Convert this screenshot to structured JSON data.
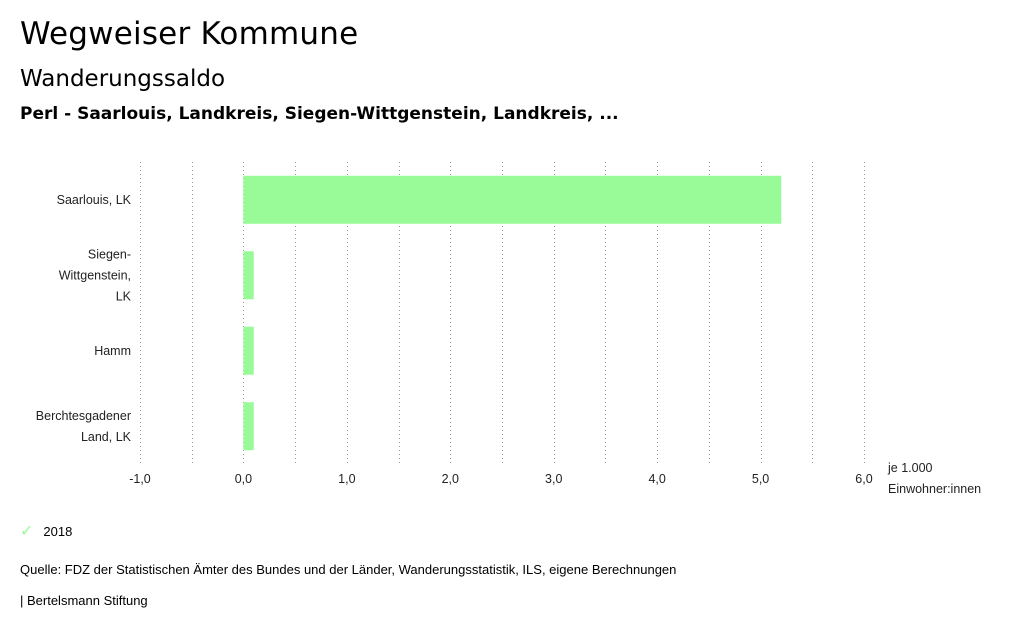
{
  "header": {
    "title": "Wegweiser Kommune",
    "subtitle": "Wanderungssaldo",
    "regions": "Perl - Saarlouis, Landkreis, Siegen-Wittgenstein, Landkreis, ..."
  },
  "chart_data": {
    "type": "bar",
    "orientation": "horizontal",
    "categories": [
      [
        "Saarlouis, LK"
      ],
      [
        "Siegen-",
        "Wittgenstein,",
        "LK"
      ],
      [
        "Hamm"
      ],
      [
        "Berchtesgadener",
        "Land, LK"
      ]
    ],
    "series": [
      {
        "name": "2018",
        "values": [
          5.2,
          0.1,
          0.1,
          0.1
        ],
        "color": "#98fb98"
      }
    ],
    "xlim": [
      -1.0,
      6.0
    ],
    "ticks": [
      "-1,0",
      "0,0",
      "1,0",
      "2,0",
      "3,0",
      "4,0",
      "5,0",
      "6,0"
    ],
    "unit_label": [
      "je 1.000",
      "Einwohner:innen"
    ],
    "grid": true
  },
  "legend": {
    "items": [
      {
        "label": "2018",
        "icon": "check-icon",
        "color": "#98fb98"
      }
    ]
  },
  "footer": {
    "source": "Quelle: FDZ der Statistischen Ämter des Bundes und der Länder, Wanderungsstatistik, ILS, eigene Berechnungen",
    "brand": "| Bertelsmann Stiftung"
  }
}
